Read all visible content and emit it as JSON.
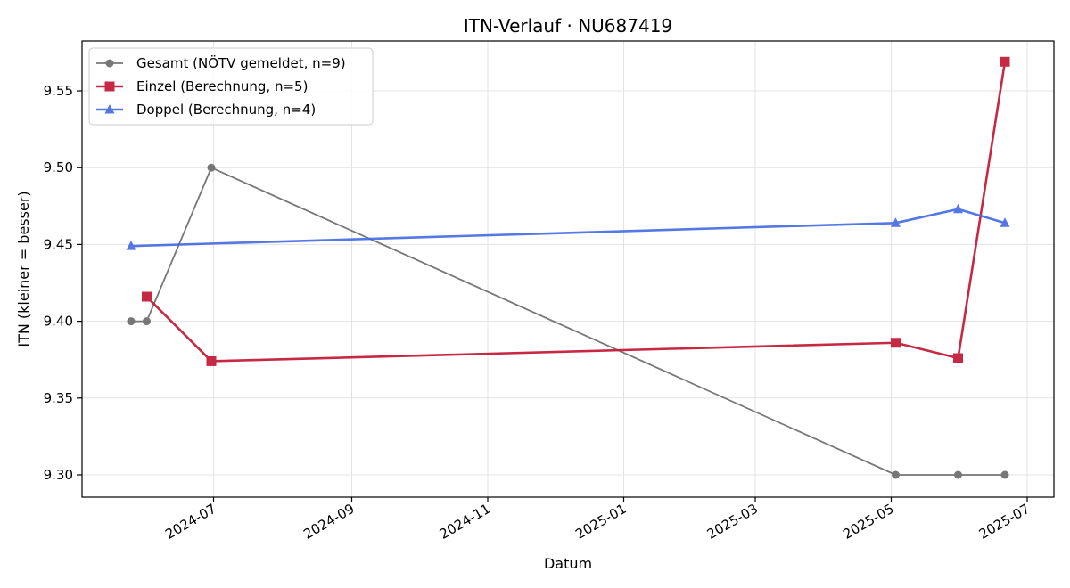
{
  "chart_data": {
    "type": "line",
    "title": "ITN-Verlauf · NU687419",
    "xlabel": "Datum",
    "ylabel": "ITN  (kleiner = besser)",
    "x_axis": "date",
    "xlim": [
      "2024-05-03",
      "2025-07-13"
    ],
    "ylim": [
      9.2855,
      9.5825
    ],
    "grid": true,
    "legend_position": "upper-left",
    "x_ticks": [
      "2024-07-01",
      "2024-09-01",
      "2024-11-01",
      "2025-01-01",
      "2025-03-01",
      "2025-05-01",
      "2025-07-01"
    ],
    "x_tick_labels": [
      "2024-07",
      "2024-09",
      "2024-11",
      "2025-01",
      "2025-03",
      "2025-05",
      "2025-07"
    ],
    "y_ticks": [
      9.3,
      9.35,
      9.4,
      9.45,
      9.5,
      9.55
    ],
    "y_tick_labels": [
      "9.30",
      "9.35",
      "9.40",
      "9.45",
      "9.50",
      "9.55"
    ],
    "series": [
      {
        "name": "Gesamt (NÖTV gemeldet, n=9)",
        "color": "#696969",
        "marker": "circle",
        "x": [
          "2024-05-25",
          "2024-06-01",
          "2024-06-30",
          "2025-05-03",
          "2025-05-31",
          "2025-06-21"
        ],
        "y": [
          9.4,
          9.4,
          9.5,
          9.3,
          9.3,
          9.3
        ]
      },
      {
        "name": "Einzel (Berechnung, n=5)",
        "color": "#c41e3a",
        "marker": "square",
        "x": [
          "2024-06-01",
          "2024-06-30",
          "2025-05-03",
          "2025-05-31",
          "2025-06-21"
        ],
        "y": [
          9.416,
          9.374,
          9.386,
          9.376,
          9.569
        ]
      },
      {
        "name": "Doppel (Berechnung, n=4)",
        "color": "#4169e1",
        "marker": "triangle",
        "x": [
          "2024-05-25",
          "2025-05-03",
          "2025-05-31",
          "2025-06-21"
        ],
        "y": [
          9.449,
          9.464,
          9.473,
          9.464
        ]
      }
    ]
  }
}
